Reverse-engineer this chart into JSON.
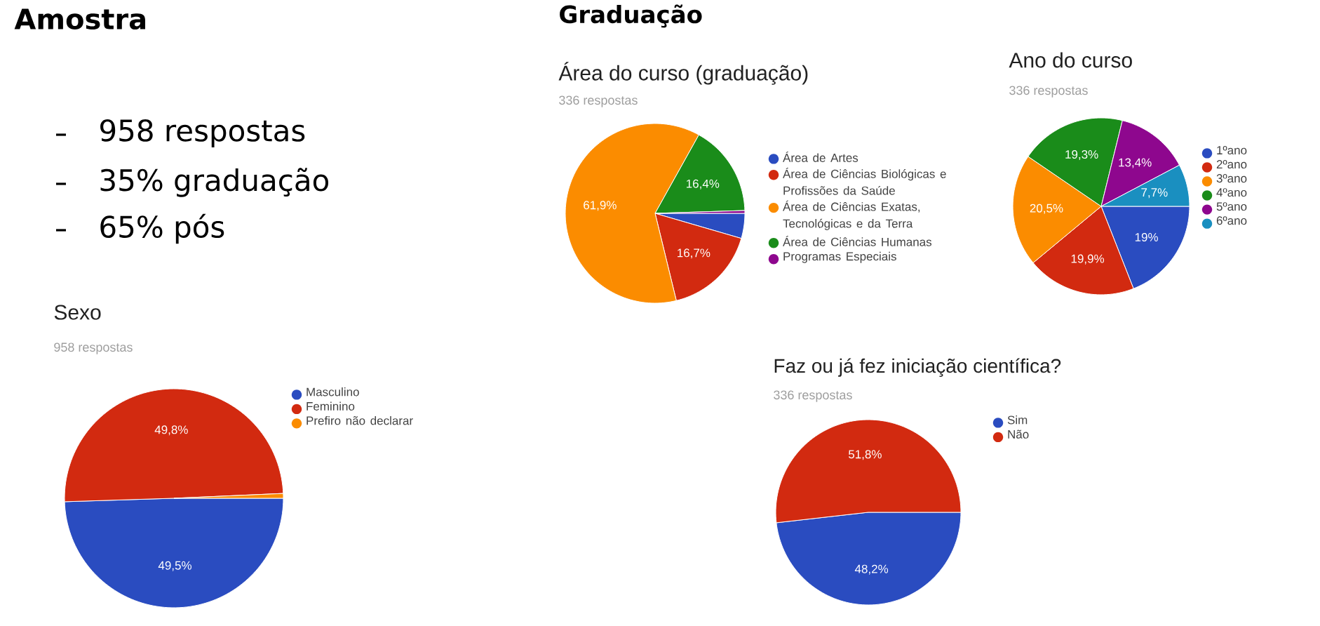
{
  "chart_data": [
    {
      "type": "other",
      "title": "Amostra",
      "annotations": [
        "958 respostas",
        "35% graduação",
        "65% pós"
      ]
    },
    {
      "type": "other",
      "title": "Graduação"
    },
    {
      "type": "pie",
      "title": "Área do curso (graduação)",
      "subtitle": "336 respostas",
      "categories": [
        "Área de Artes",
        "Área de Ciências Biológicas e Profissões da Saúde",
        "Área de Ciências Exatas, Tecnológicas e da Terra",
        "Área de Ciências Humanas",
        "Programas Especiais"
      ],
      "values": [
        4.5,
        16.7,
        61.9,
        16.4,
        0.5
      ],
      "value_labels": [
        null,
        "16,7%",
        "61,9%",
        "16,4%",
        null
      ],
      "colors": [
        "#2a4cc0",
        "#d22a10",
        "#fb8c00",
        "#1a8c1a",
        "#8e078e"
      ],
      "legend": "right"
    },
    {
      "type": "pie",
      "title": "Ano do curso",
      "subtitle": "336 respostas",
      "categories": [
        "1ºano",
        "2ºano",
        "3ºano",
        "4ºano",
        "5ºano",
        "6ºano"
      ],
      "values": [
        19,
        19.9,
        20.5,
        19.3,
        13.4,
        7.7
      ],
      "value_labels": [
        "19%",
        "19,9%",
        "20,5%",
        "19,3%",
        "13,4%",
        "7,7%"
      ],
      "colors": [
        "#2a4cc0",
        "#d22a10",
        "#fb8c00",
        "#1a8c1a",
        "#8e078e",
        "#1a8fc0"
      ],
      "legend": "right"
    },
    {
      "type": "pie",
      "title": "Sexo",
      "subtitle": "958 respostas",
      "categories": [
        "Masculino",
        "Feminino",
        "Prefiro não declarar"
      ],
      "values": [
        49.5,
        49.8,
        0.7
      ],
      "value_labels": [
        "49,5%",
        "49,8%",
        null
      ],
      "colors": [
        "#2a4cc0",
        "#d22a10",
        "#fb8c00"
      ],
      "legend": "right"
    },
    {
      "type": "pie",
      "title": "Faz ou já fez iniciação científica?",
      "subtitle": "336 respostas",
      "categories": [
        "Sim",
        "Não"
      ],
      "values": [
        48.2,
        51.8
      ],
      "value_labels": [
        "48,2%",
        "51,8%"
      ],
      "colors": [
        "#2a4cc0",
        "#d22a10"
      ],
      "legend": "right"
    }
  ]
}
